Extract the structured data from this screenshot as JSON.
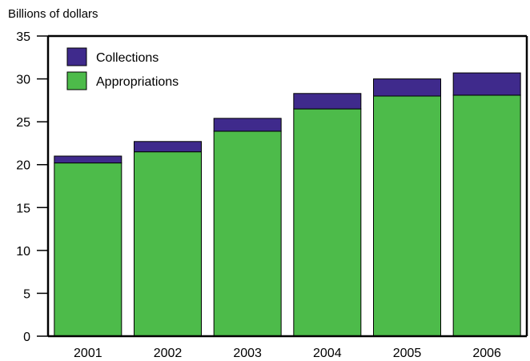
{
  "chart_data": {
    "type": "bar",
    "stacked": true,
    "unit_label": "Billions of dollars",
    "categories": [
      "2001",
      "2002",
      "2003",
      "2004",
      "2005",
      "2006"
    ],
    "series": [
      {
        "name": "Appropriations",
        "color": "#4dbb4a",
        "values": [
          20.2,
          21.5,
          23.9,
          26.5,
          28.0,
          28.1
        ]
      },
      {
        "name": "Collections",
        "color": "#3f2a8c",
        "values": [
          0.8,
          1.2,
          1.5,
          1.8,
          2.0,
          2.6
        ]
      }
    ],
    "legend": {
      "placement": "top-left",
      "items": [
        {
          "name": "Collections",
          "color": "#3f2a8c"
        },
        {
          "name": "Appropriations",
          "color": "#4dbb4a"
        }
      ]
    },
    "yticks": [
      "0",
      "5",
      "10",
      "15",
      "20",
      "25",
      "30",
      "35"
    ],
    "ylim": [
      0,
      35
    ],
    "grid": false
  }
}
